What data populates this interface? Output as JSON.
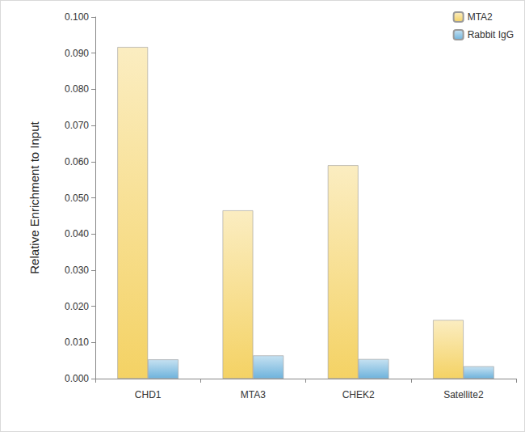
{
  "chart_data": {
    "type": "bar",
    "y_label": "Relative Enrichment to Input",
    "categories": [
      "CHD1",
      "MTA3",
      "CHEK2",
      "Satellite2"
    ],
    "series": [
      {
        "name": "MTA2",
        "color": "#f4d264",
        "values": [
          0.0917,
          0.0465,
          0.059,
          0.0162
        ]
      },
      {
        "name": "Rabbit IgG",
        "color": "#6fb3dc",
        "values": [
          0.0053,
          0.0064,
          0.0054,
          0.0034
        ]
      }
    ],
    "ylim": [
      0,
      0.1
    ],
    "yticks": [
      {
        "value": 0,
        "label": "0.000"
      },
      {
        "value": 0.01,
        "label": "0.010"
      },
      {
        "value": 0.02,
        "label": "0.020"
      },
      {
        "value": 0.03,
        "label": "0.030"
      },
      {
        "value": 0.04,
        "label": "0.040"
      },
      {
        "value": 0.05,
        "label": "0.050"
      },
      {
        "value": 0.06,
        "label": "0.060"
      },
      {
        "value": 0.07,
        "label": "0.070"
      },
      {
        "value": 0.08,
        "label": "0.080"
      },
      {
        "value": 0.09,
        "label": "0.090"
      },
      {
        "value": 0.1,
        "label": "0.100"
      }
    ],
    "grid": false,
    "legend": "top-right"
  }
}
